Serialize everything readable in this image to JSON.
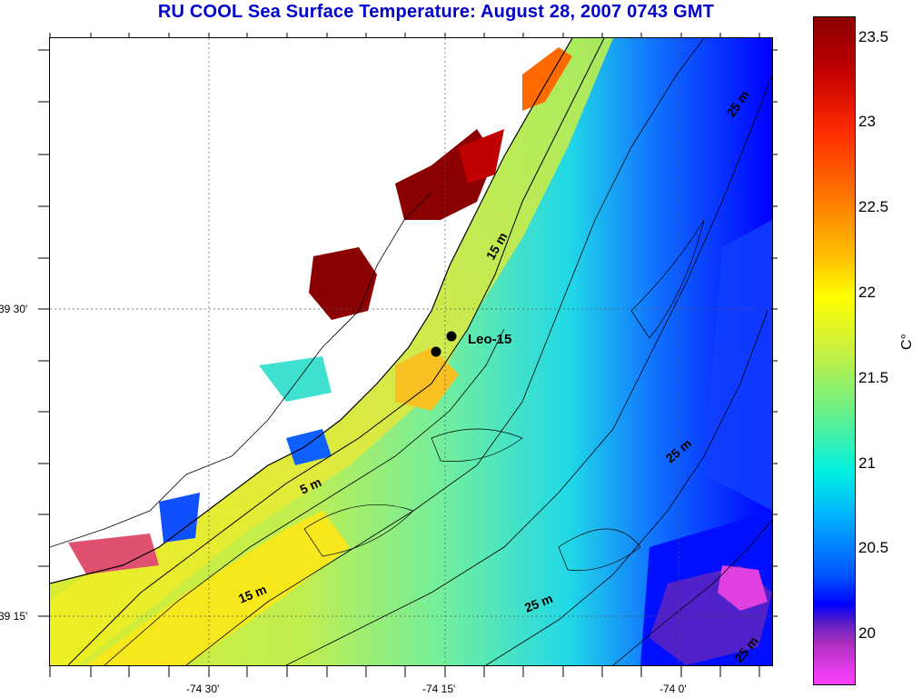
{
  "title": "RU COOL  Sea Surface Temperature:  August 28, 2007 0743 GMT",
  "station_label": "Leo-15",
  "lat_labels": [
    "39 30'",
    "39 15'"
  ],
  "lon_labels": [
    "-74 30'",
    "-74 15'",
    "-74 0'"
  ],
  "depth_labels": [
    "25 m",
    "15 m",
    "25 m",
    "5 m",
    "15 m",
    "25 m",
    "25 m"
  ],
  "colorbar": {
    "unit": "C°",
    "ticks": [
      "23.5",
      "23",
      "22.5",
      "22",
      "21.5",
      "21",
      "20.5",
      "20"
    ]
  },
  "colors": {
    "title": "#0000cc",
    "land": "#ffffff"
  }
}
